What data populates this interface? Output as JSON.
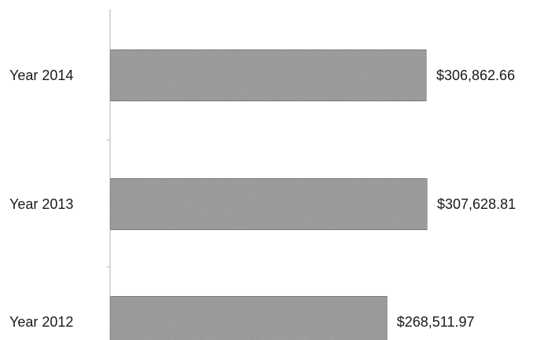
{
  "chart_data": {
    "type": "bar",
    "orientation": "horizontal",
    "categories": [
      "Year 2014",
      "Year 2013",
      "Year 2012"
    ],
    "values": [
      306862.66,
      307628.81,
      268511.97
    ],
    "data_labels": [
      "$306,862.66",
      "$307,628.81",
      "$268,511.97"
    ],
    "grid": false,
    "bar_color": "#a9a9a9",
    "bar_edge_color": "#555555",
    "axis_color": "#b5b5b5"
  }
}
